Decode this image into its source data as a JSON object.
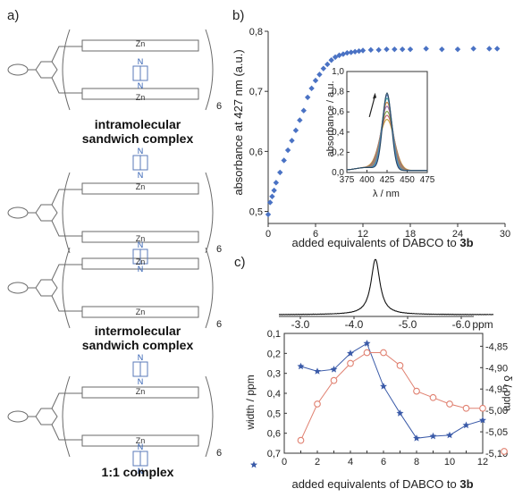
{
  "panels": {
    "a": {
      "letter": "a)",
      "zn": "Zn",
      "n": "N",
      "subscript": "6",
      "captions": [
        [
          "intramolecular",
          "sandwich complex"
        ],
        [
          "intermolecular",
          "sandwich complex"
        ],
        [
          "1:1 complex"
        ]
      ]
    },
    "b": {
      "letter": "b)"
    },
    "c": {
      "letter": "c)"
    }
  },
  "chart_data": [
    {
      "id": "titration",
      "type": "scatter",
      "xlabel_text": "added equivalents of DABCO to ",
      "xlabel_bold": "3b",
      "ylabel": "absorbance at 427 nm (a.u.)",
      "xlim": [
        0,
        30
      ],
      "ylim": [
        0.48,
        0.8
      ],
      "xticks": [
        0,
        6,
        12,
        18,
        24,
        30
      ],
      "yticks": [
        0.5,
        0.6,
        0.7,
        0.8
      ],
      "ytick_labels": [
        "0,5",
        "0,6",
        "0,7",
        "0,8"
      ],
      "color": "#4a72c4",
      "x": [
        0,
        0.25,
        0.5,
        0.75,
        1,
        1.5,
        2,
        2.5,
        3,
        3.5,
        4,
        4.5,
        5,
        5.5,
        6,
        6.5,
        7,
        7.5,
        8,
        8.5,
        9,
        9.5,
        10,
        10.5,
        11,
        11.5,
        12,
        13,
        14,
        15,
        16,
        17,
        18,
        20,
        22,
        24,
        26,
        28,
        29
      ],
      "y": [
        0.495,
        0.515,
        0.525,
        0.535,
        0.548,
        0.565,
        0.585,
        0.602,
        0.618,
        0.635,
        0.652,
        0.668,
        0.69,
        0.705,
        0.718,
        0.728,
        0.738,
        0.745,
        0.752,
        0.757,
        0.76,
        0.762,
        0.764,
        0.765,
        0.766,
        0.767,
        0.768,
        0.769,
        0.769,
        0.77,
        0.77,
        0.77,
        0.77,
        0.771,
        0.77,
        0.77,
        0.771,
        0.771,
        0.771
      ]
    },
    {
      "id": "inset-spectra",
      "type": "line",
      "xlabel": "λ / nm",
      "ylabel": "absorbance / a.u.",
      "xlim": [
        375,
        475
      ],
      "ylim": [
        0,
        1.0
      ],
      "xticks": [
        375,
        400,
        425,
        450,
        475
      ],
      "yticks": [
        0.0,
        0.2,
        0.4,
        0.6,
        0.8,
        1.0
      ],
      "ytick_labels": [
        "0,0",
        "0,2",
        "0,4",
        "0,6",
        "0,8",
        "1,0"
      ],
      "peak_x": 425,
      "series": [
        {
          "peak": 0.5,
          "color": "#c4a23a"
        },
        {
          "peak": 0.54,
          "color": "#c46070"
        },
        {
          "peak": 0.58,
          "color": "#7fa040"
        },
        {
          "peak": 0.63,
          "color": "#9a6bb0"
        },
        {
          "peak": 0.67,
          "color": "#d08040"
        },
        {
          "peak": 0.71,
          "color": "#3aa0a0"
        },
        {
          "peak": 0.74,
          "color": "#5a7ac8"
        },
        {
          "peak": 0.76,
          "color": "#2a4a60"
        }
      ]
    },
    {
      "id": "nmr-peak",
      "type": "line",
      "xlabel": "ppm",
      "xticks": [
        -3.0,
        -4.0,
        -5.0,
        -6.0
      ],
      "xtick_labels": [
        "-3.0",
        "-4.0",
        "-5.0",
        "-6.0"
      ],
      "xlim": [
        -2.6,
        -6.6
      ],
      "peak_center": -4.4,
      "peak_width": 0.1
    },
    {
      "id": "nmr-width-shift",
      "type": "line",
      "xlabel_text": "added equivalents of DABCO to ",
      "xlabel_bold": "3b",
      "ylabel_left": "width / ppm",
      "ylabel_right": "δ / ppm",
      "x": [
        1,
        2,
        3,
        4,
        5,
        6,
        7,
        8,
        9,
        10,
        11,
        12
      ],
      "xlim": [
        0,
        12
      ],
      "xticks": [
        0,
        1,
        2,
        3,
        4,
        5,
        6,
        7,
        8,
        9,
        10,
        11,
        12
      ],
      "ylim_left": [
        0.7,
        0.1
      ],
      "yticks_left": [
        0.1,
        0.2,
        0.3,
        0.4,
        0.5,
        0.6,
        0.7
      ],
      "ytick_labels_left": [
        "0,1",
        "0,2",
        "0,3",
        "0,4",
        "0,5",
        "0,6",
        "0,7"
      ],
      "ylim_right": [
        -4.82,
        -5.1
      ],
      "yticks_right": [
        -4.85,
        -4.9,
        -4.95,
        -5.0,
        -5.05,
        -5.1
      ],
      "ytick_labels_right": [
        "-4,85",
        "-4,90",
        "-4,95",
        "-5,00",
        "-5,05",
        "-5,10"
      ],
      "series": [
        {
          "axis": "left",
          "marker": "star",
          "color": "#3a5aa8",
          "values": [
            0.265,
            0.29,
            0.28,
            0.2,
            0.15,
            0.365,
            0.5,
            0.625,
            0.615,
            0.61,
            0.56,
            0.535
          ]
        },
        {
          "axis": "right",
          "marker": "circle",
          "color": "#e08070",
          "values": [
            -5.07,
            -4.985,
            -4.93,
            -4.89,
            -4.865,
            -4.865,
            -4.895,
            -4.955,
            -4.97,
            -4.985,
            -4.995,
            -4.995
          ]
        }
      ]
    }
  ]
}
